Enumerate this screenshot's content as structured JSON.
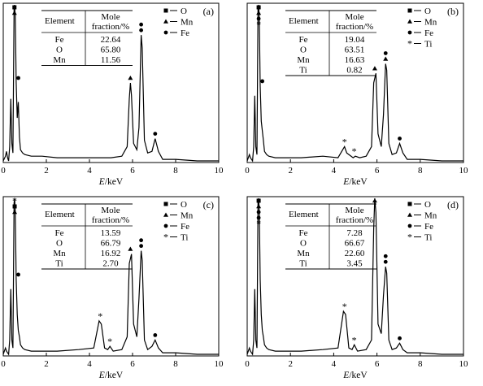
{
  "panels": [
    {
      "label": "(a)",
      "table": {
        "headers": [
          "Element",
          "Mole",
          "fraction/%"
        ],
        "rows": [
          [
            "Fe",
            "22.64"
          ],
          [
            "O",
            "65.80"
          ],
          [
            "Mn",
            "11.56"
          ]
        ]
      },
      "legend": [
        "O",
        "Mn",
        "Fe"
      ],
      "xlabel": "E/keV"
    },
    {
      "label": "(b)",
      "table": {
        "headers": [
          "Element",
          "Mole",
          "fraction/%"
        ],
        "rows": [
          [
            "Fe",
            "19.04"
          ],
          [
            "O",
            "63.51"
          ],
          [
            "Mn",
            "16.63"
          ],
          [
            "Ti",
            "0.82"
          ]
        ]
      },
      "legend": [
        "O",
        "Mn",
        "Fe",
        "Ti"
      ],
      "xlabel": "E/keV"
    },
    {
      "label": "(c)",
      "table": {
        "headers": [
          "Element",
          "Mole",
          "fraction/%"
        ],
        "rows": [
          [
            "Fe",
            "13.59"
          ],
          [
            "O",
            "66.79"
          ],
          [
            "Mn",
            "16.92"
          ],
          [
            "Ti",
            "2.70"
          ]
        ]
      },
      "legend": [
        "O",
        "Mn",
        "Fe",
        "Ti"
      ],
      "xlabel": "E/keV"
    },
    {
      "label": "(d)",
      "table": {
        "headers": [
          "Element",
          "Mole",
          "fraction/%"
        ],
        "rows": [
          [
            "Fe",
            "7.28"
          ],
          [
            "O",
            "66.67"
          ],
          [
            "Mn",
            "22.60"
          ],
          [
            "Ti",
            "3.45"
          ]
        ]
      },
      "legend": [
        "O",
        "Mn",
        "Fe",
        "Ti"
      ],
      "xlabel": "E/keV"
    }
  ],
  "chart_data": [
    {
      "type": "line",
      "panel": "(a)",
      "xlabel": "E/keV",
      "xlim": [
        0,
        10
      ],
      "ylim": [
        0,
        100
      ],
      "xticks": [
        0,
        2,
        4,
        6,
        8,
        10
      ],
      "x": [
        0,
        0.1,
        0.15,
        0.2,
        0.25,
        0.3,
        0.35,
        0.4,
        0.45,
        0.5,
        0.52,
        0.56,
        0.6,
        0.65,
        0.7,
        0.75,
        0.8,
        0.9,
        1.0,
        1.3,
        1.8,
        2.5,
        3.5,
        4.3,
        4.6,
        5.0,
        5.5,
        5.75,
        5.85,
        5.9,
        5.95,
        6.05,
        6.2,
        6.3,
        6.4,
        6.45,
        6.55,
        6.7,
        6.9,
        7.05,
        7.2,
        7.4,
        8.0,
        9.0,
        10.0
      ],
      "y": [
        1,
        4,
        7,
        3,
        1,
        10,
        40,
        12,
        6,
        96,
        99,
        92,
        50,
        28,
        38,
        16,
        8,
        6,
        5,
        4,
        4,
        3,
        3,
        3,
        3,
        3,
        4,
        10,
        40,
        50,
        42,
        12,
        8,
        22,
        80,
        72,
        14,
        6,
        7,
        15,
        7,
        2,
        2,
        1,
        1
      ],
      "markers": [
        {
          "symbol": "square",
          "x": 0.52
        },
        {
          "symbol": "triangle",
          "x": 0.52
        },
        {
          "symbol": "circle",
          "x": 0.7
        },
        {
          "symbol": "triangle",
          "x": 5.9
        },
        {
          "symbol": "circle",
          "x": 6.4
        },
        {
          "symbol": "circle",
          "x": 6.4
        },
        {
          "symbol": "circle",
          "x": 7.05
        }
      ]
    },
    {
      "type": "line",
      "panel": "(b)",
      "xlabel": "E/keV",
      "xlim": [
        0,
        10
      ],
      "ylim": [
        0,
        100
      ],
      "xticks": [
        0,
        2,
        4,
        6,
        8,
        10
      ],
      "x": [
        0,
        0.1,
        0.15,
        0.2,
        0.25,
        0.3,
        0.35,
        0.4,
        0.45,
        0.5,
        0.53,
        0.56,
        0.6,
        0.65,
        0.7,
        0.75,
        0.8,
        0.9,
        1.0,
        1.3,
        1.8,
        2.5,
        3.5,
        4.2,
        4.5,
        4.6,
        4.9,
        5.0,
        5.2,
        5.5,
        5.75,
        5.85,
        5.95,
        6.05,
        6.2,
        6.3,
        6.4,
        6.45,
        6.55,
        6.7,
        6.9,
        7.05,
        7.2,
        7.4,
        8.0,
        9.0,
        10.0
      ],
      "y": [
        1,
        5,
        3,
        2,
        1,
        10,
        42,
        10,
        5,
        96,
        99,
        90,
        48,
        26,
        20,
        14,
        7,
        5,
        4,
        3,
        3,
        3,
        4,
        3,
        10,
        6,
        3,
        4,
        3,
        4,
        10,
        50,
        56,
        18,
        10,
        30,
        62,
        58,
        12,
        5,
        6,
        12,
        6,
        2,
        2,
        1,
        1
      ],
      "markers": [
        {
          "symbol": "square",
          "x": 0.53
        },
        {
          "symbol": "triangle",
          "x": 0.53
        },
        {
          "symbol": "circle",
          "x": 0.53
        },
        {
          "symbol": "asterisk",
          "x": 0.53
        },
        {
          "symbol": "circle",
          "x": 0.7
        },
        {
          "symbol": "asterisk",
          "x": 4.5
        },
        {
          "symbol": "asterisk",
          "x": 4.95
        },
        {
          "symbol": "triangle",
          "x": 5.9
        },
        {
          "symbol": "triangle",
          "x": 6.4
        },
        {
          "symbol": "circle",
          "x": 6.4
        },
        {
          "symbol": "circle",
          "x": 7.05
        }
      ]
    },
    {
      "type": "line",
      "panel": "(c)",
      "xlabel": "E/keV",
      "xlim": [
        0,
        10
      ],
      "ylim": [
        0,
        100
      ],
      "xticks": [
        0,
        2,
        4,
        6,
        8,
        10
      ],
      "x": [
        0,
        0.1,
        0.15,
        0.2,
        0.25,
        0.3,
        0.35,
        0.4,
        0.45,
        0.5,
        0.53,
        0.56,
        0.6,
        0.65,
        0.7,
        0.75,
        0.8,
        0.9,
        1.0,
        1.3,
        1.8,
        2.5,
        3.5,
        4.2,
        4.45,
        4.55,
        4.7,
        4.85,
        4.95,
        5.1,
        5.5,
        5.75,
        5.85,
        5.95,
        6.05,
        6.2,
        6.3,
        6.4,
        6.45,
        6.55,
        6.7,
        6.9,
        7.05,
        7.2,
        7.4,
        8.0,
        9.0,
        10.0
      ],
      "y": [
        1,
        5,
        3,
        2,
        1,
        10,
        42,
        10,
        5,
        96,
        99,
        90,
        48,
        26,
        16,
        12,
        7,
        5,
        4,
        3,
        3,
        3,
        4,
        5,
        22,
        20,
        5,
        4,
        6,
        3,
        4,
        12,
        58,
        64,
        20,
        12,
        36,
        66,
        60,
        10,
        4,
        6,
        10,
        5,
        2,
        2,
        1,
        1
      ],
      "markers": [
        {
          "symbol": "asterisk",
          "x": 0.53
        },
        {
          "symbol": "square",
          "x": 0.53
        },
        {
          "symbol": "triangle",
          "x": 0.53
        },
        {
          "symbol": "circle",
          "x": 0.7
        },
        {
          "symbol": "asterisk",
          "x": 4.5
        },
        {
          "symbol": "asterisk",
          "x": 4.95
        },
        {
          "symbol": "triangle",
          "x": 5.9
        },
        {
          "symbol": "circle",
          "x": 6.4
        },
        {
          "symbol": "circle",
          "x": 6.4
        },
        {
          "symbol": "circle",
          "x": 7.05
        }
      ]
    },
    {
      "type": "line",
      "panel": "(d)",
      "xlabel": "E/keV",
      "xlim": [
        0,
        10
      ],
      "ylim": [
        0,
        100
      ],
      "xticks": [
        0,
        2,
        4,
        6,
        8,
        10
      ],
      "x": [
        0,
        0.1,
        0.15,
        0.2,
        0.25,
        0.3,
        0.35,
        0.4,
        0.45,
        0.5,
        0.53,
        0.56,
        0.6,
        0.65,
        0.7,
        0.75,
        0.8,
        0.9,
        1.0,
        1.3,
        1.8,
        2.5,
        3.5,
        4.2,
        4.45,
        4.55,
        4.7,
        4.85,
        4.95,
        5.1,
        5.5,
        5.75,
        5.85,
        5.9,
        5.95,
        6.05,
        6.2,
        6.3,
        6.4,
        6.45,
        6.55,
        6.7,
        6.9,
        7.05,
        7.2,
        7.4,
        8.0,
        9.0,
        10.0
      ],
      "y": [
        1,
        5,
        3,
        2,
        1,
        10,
        42,
        10,
        5,
        96,
        99,
        90,
        48,
        26,
        16,
        12,
        7,
        5,
        4,
        3,
        3,
        3,
        4,
        5,
        28,
        26,
        5,
        4,
        7,
        3,
        4,
        10,
        80,
        99,
        90,
        20,
        14,
        38,
        56,
        52,
        10,
        4,
        5,
        8,
        4,
        2,
        2,
        1,
        1
      ],
      "markers": [
        {
          "symbol": "square",
          "x": 0.53
        },
        {
          "symbol": "triangle",
          "x": 0.53
        },
        {
          "symbol": "circle",
          "x": 0.53
        },
        {
          "symbol": "circle",
          "x": 0.53
        },
        {
          "symbol": "asterisk",
          "x": 0.53
        },
        {
          "symbol": "asterisk",
          "x": 4.5
        },
        {
          "symbol": "asterisk",
          "x": 4.95
        },
        {
          "symbol": "triangle",
          "x": 5.9
        },
        {
          "symbol": "circle",
          "x": 6.4
        },
        {
          "symbol": "circle",
          "x": 6.4
        },
        {
          "symbol": "circle",
          "x": 7.05
        }
      ]
    }
  ]
}
